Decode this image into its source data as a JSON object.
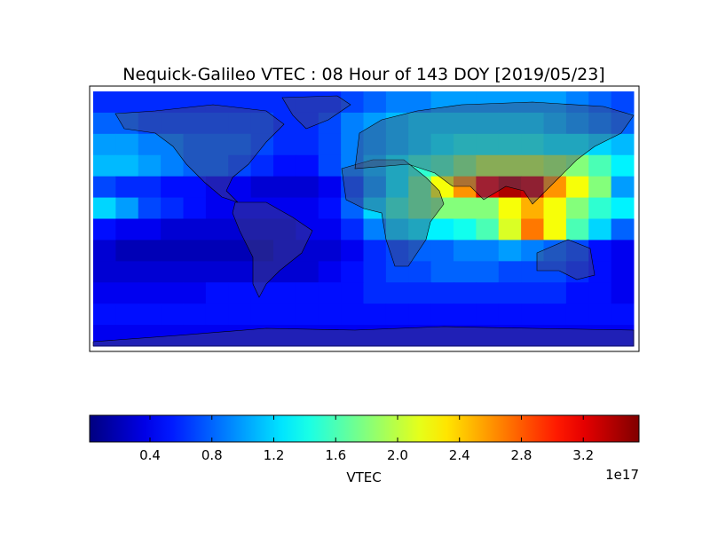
{
  "chart_data": {
    "type": "heatmap",
    "title": "Nequick-Galileo VTEC : 08 Hour of 143 DOY [2019/05/23]",
    "colormap": "jet",
    "z": [
      [
        0.6,
        0.6,
        0.6,
        0.6,
        0.6,
        0.6,
        0.6,
        0.6,
        0.6,
        0.6,
        0.6,
        0.7,
        0.8,
        0.9,
        0.9,
        1.0,
        1.0,
        1.0,
        1.0,
        1.0,
        1.0,
        0.9,
        0.8,
        0.7
      ],
      [
        0.8,
        0.8,
        0.7,
        0.7,
        0.7,
        0.7,
        0.7,
        0.7,
        0.6,
        0.6,
        0.7,
        0.9,
        1.0,
        1.1,
        1.2,
        1.2,
        1.2,
        1.2,
        1.2,
        1.2,
        1.1,
        1.0,
        0.9,
        0.8
      ],
      [
        1.0,
        1.0,
        0.9,
        0.9,
        0.8,
        0.8,
        0.8,
        0.7,
        0.6,
        0.6,
        0.7,
        0.9,
        1.0,
        1.1,
        1.2,
        1.3,
        1.4,
        1.4,
        1.4,
        1.4,
        1.3,
        1.3,
        1.2,
        1.1
      ],
      [
        1.1,
        1.1,
        1.0,
        0.9,
        0.8,
        0.8,
        0.7,
        0.6,
        0.5,
        0.5,
        0.7,
        0.9,
        1.1,
        1.3,
        1.5,
        1.6,
        1.8,
        2.0,
        2.0,
        2.0,
        1.9,
        1.8,
        1.6,
        1.3
      ],
      [
        0.7,
        0.6,
        0.6,
        0.5,
        0.5,
        0.4,
        0.4,
        0.3,
        0.3,
        0.3,
        0.4,
        0.7,
        1.0,
        1.3,
        1.7,
        2.2,
        2.6,
        3.2,
        3.4,
        3.3,
        2.6,
        2.2,
        1.8,
        1.0
      ],
      [
        1.2,
        1.0,
        0.7,
        0.6,
        0.5,
        0.4,
        0.4,
        0.4,
        0.4,
        0.4,
        0.5,
        0.8,
        1.2,
        1.5,
        1.7,
        1.8,
        1.8,
        1.8,
        2.2,
        2.5,
        2.2,
        1.8,
        1.5,
        1.3
      ],
      [
        0.5,
        0.4,
        0.4,
        0.3,
        0.3,
        0.3,
        0.3,
        0.3,
        0.3,
        0.4,
        0.4,
        0.6,
        0.9,
        1.2,
        1.3,
        1.3,
        1.4,
        1.6,
        2.1,
        2.7,
        2.2,
        1.6,
        1.2,
        0.8
      ],
      [
        0.3,
        0.2,
        0.2,
        0.2,
        0.2,
        0.2,
        0.2,
        0.2,
        0.3,
        0.3,
        0.3,
        0.4,
        0.6,
        0.7,
        0.8,
        0.8,
        0.9,
        0.9,
        1.0,
        0.9,
        0.8,
        0.7,
        0.5,
        0.4
      ],
      [
        0.3,
        0.3,
        0.3,
        0.3,
        0.3,
        0.3,
        0.3,
        0.3,
        0.3,
        0.3,
        0.4,
        0.5,
        0.6,
        0.7,
        0.7,
        0.8,
        0.8,
        0.8,
        0.7,
        0.7,
        0.7,
        0.6,
        0.5,
        0.4
      ],
      [
        0.4,
        0.4,
        0.4,
        0.4,
        0.4,
        0.5,
        0.5,
        0.5,
        0.5,
        0.5,
        0.5,
        0.5,
        0.6,
        0.6,
        0.6,
        0.6,
        0.6,
        0.6,
        0.6,
        0.6,
        0.6,
        0.5,
        0.5,
        0.4
      ],
      [
        0.5,
        0.5,
        0.5,
        0.5,
        0.5,
        0.5,
        0.5,
        0.5,
        0.5,
        0.5,
        0.5,
        0.5,
        0.5,
        0.5,
        0.5,
        0.5,
        0.5,
        0.5,
        0.5,
        0.5,
        0.5,
        0.5,
        0.5,
        0.5
      ],
      [
        0.4,
        0.4,
        0.4,
        0.4,
        0.4,
        0.4,
        0.4,
        0.4,
        0.4,
        0.4,
        0.4,
        0.4,
        0.4,
        0.4,
        0.4,
        0.4,
        0.4,
        0.4,
        0.4,
        0.4,
        0.4,
        0.4,
        0.4,
        0.4
      ]
    ],
    "clim": [
      0.01,
      3.56
    ],
    "colorbar_ticks": [
      0.4,
      0.8,
      1.2,
      1.6,
      {
        "value": 2,
        "label": "2.0"
      },
      2.4,
      2.8,
      3.2
    ],
    "colorbar_label": "VTEC",
    "colorbar_offset": "1e17"
  }
}
